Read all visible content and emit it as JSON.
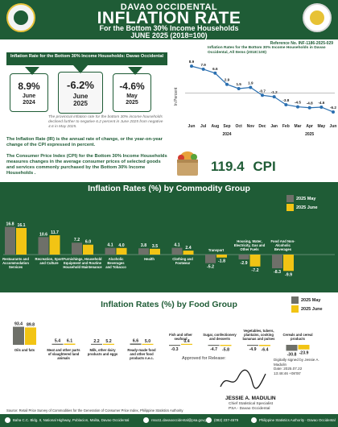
{
  "header": {
    "line1": "DAVAO OCCIDENTAL",
    "line2": "INFLATION RATE",
    "line3": "For the Bottom 30% Income Households",
    "line4": "JUNE 2025 (2018=100)",
    "reference": "Reference No. INF-1186-2025-029"
  },
  "summary": {
    "box_title": "Inflation Rate for the Bottom 30% Income Households: Davao Occidental",
    "left": {
      "value": "8.9%",
      "date": "June\n2024"
    },
    "mid": {
      "value": "-6.2%",
      "date": "June\n2025"
    },
    "right": {
      "value": "-4.6%",
      "date": "May\n2025"
    },
    "note": "The provincial inflation rate for the bottom 30% income households declined further to negative 6.2 percent in June 2025 from negative 4.6 in May 2025."
  },
  "definitions": {
    "ir": "The Inflation Rate (IR) is the annual rate of change, or the year-on-year change of the CPI expressed in percent.",
    "cpi": "The Consumer Price Index (CPI) for the Bottom 30% Income Households measures changes in the average consumer prices of selected goods and services commonly purchased by the Bottom 30% Income Households ."
  },
  "cpi": {
    "value": "119.4",
    "label": "CPI"
  },
  "colors": {
    "green": "#1f5c36",
    "gray": "#6e7069",
    "gold": "#f2c414",
    "lineblue": "#2a6fb0"
  },
  "chart_data": [
    {
      "type": "line",
      "title": "Inflation Rates for the Bottom 30% Income Households in Davao Occidental, All Items (2018=100)",
      "ylabel": "In Percent",
      "x": [
        "Jun",
        "Jul",
        "Aug",
        "Sep",
        "Oct",
        "Nov",
        "Dec",
        "Jan",
        "Feb",
        "Mar",
        "Apr",
        "May",
        "Jun"
      ],
      "x_year_labels": [
        "2024",
        "2025"
      ],
      "values": [
        8.9,
        7.9,
        6.6,
        2.9,
        1.5,
        1.9,
        -0.7,
        -1.2,
        -3.8,
        -4.5,
        -4.8,
        -4.6,
        -6.2
      ],
      "grid": false
    },
    {
      "type": "bar",
      "title": "Inflation Rates (%) by Commodity Group",
      "categories": [
        "Restaurants and Accommodation Services",
        "Recreation, Sport and Culture",
        "Furnishings, Household Equipment and Routine Household Maintenance",
        "Alcoholic Beverages and Tobacco",
        "Health",
        "Clothing and Footwear",
        "Transport",
        "Housing, Water, Electricity, Gas and Other Fuels",
        "Food And Non-Alcoholic Beverages"
      ],
      "series": [
        {
          "name": "2025 May",
          "values": [
            16.8,
            10.6,
            7.2,
            4.1,
            3.8,
            4.1,
            -5.2,
            -2.9,
            -8.3
          ]
        },
        {
          "name": "2025 June",
          "values": [
            16.1,
            11.7,
            6.0,
            4.0,
            3.5,
            2.4,
            -1.8,
            -7.2,
            -9.9
          ]
        }
      ],
      "legend": "top-right"
    },
    {
      "type": "bar",
      "title": "Inflation Rates (%) by Food Group",
      "categories": [
        "Oils and fats",
        "Meat and other parts of slaughtered land animals",
        "Milk, other dairy products and eggs",
        "Ready-made food and other food products n.e.c.",
        "Fish and other seafood",
        "Sugar, confectionery and desserts",
        "Vegetables, tubers, plantains, cooking bananas and pulses",
        "Cereals and cereal products"
      ],
      "series": [
        {
          "name": "2025 May",
          "values": [
            93.4,
            5.4,
            2.2,
            6.6,
            -0.3,
            -4.7,
            -4.9,
            -30.8
          ]
        },
        {
          "name": "2025 June",
          "values": [
            89.8,
            6.1,
            5.2,
            5.0,
            0.4,
            -5.8,
            -6.4,
            -23.9
          ]
        }
      ],
      "legend": "top-right"
    }
  ],
  "commodity_labels": [
    "Restaurants and\nAccommodation\nServices",
    "Recreation, Sport\nand Culture",
    "Furnishings, Household\nEquipment and Routine\nHousehold Maintenance",
    "Alcoholic\nBeverages\nand Tobacco",
    "Health",
    "Clothing and\nFootwear",
    "Transport",
    "Housing, Water,\nElectricity, Gas and\nOther Fuels",
    "Food And Non-\nAlcoholic\nBeverages"
  ],
  "food_labels": [
    "Oils and fats",
    "Meat and other parts\nof slaughtered land\nanimals",
    "Milk, other dairy\nproducts and eggs",
    "Ready-made food\nand other food\nproducts n.e.c.",
    "Fish and other\nseafood",
    "Sugar, confectionery\nand desserts",
    "Vegetables, tubers,\nplantains, cooking\nbananas and pulses",
    "Cereals and cereal\nproducts"
  ],
  "legend": {
    "may": "2025 May",
    "june": "2025 June"
  },
  "approval": {
    "label": "Approved for Release:",
    "name": "JESSIE A. MADULIN",
    "position": "Chief Statistical Specialist\nPSA - Davao Occidental",
    "digital": "Digitally signed by Jessie A. Madulin\nDate: 2025.07.22\n13:48:46 +08'00'"
  },
  "source": "Source: Retail Price Survey of Commodities for the Generation of Consumer Price Index, Philippine Statistics Authority",
  "footer": {
    "address": "Baha C.C. Bldg. II, National Highway, Poblacion, Malita, Davao Occidental",
    "email": "rsso11.davaooccidental@psa.gov.ph",
    "phone": "(082) 237-4579",
    "web": "Philippine Statistics Authority - Davao Occidental"
  }
}
